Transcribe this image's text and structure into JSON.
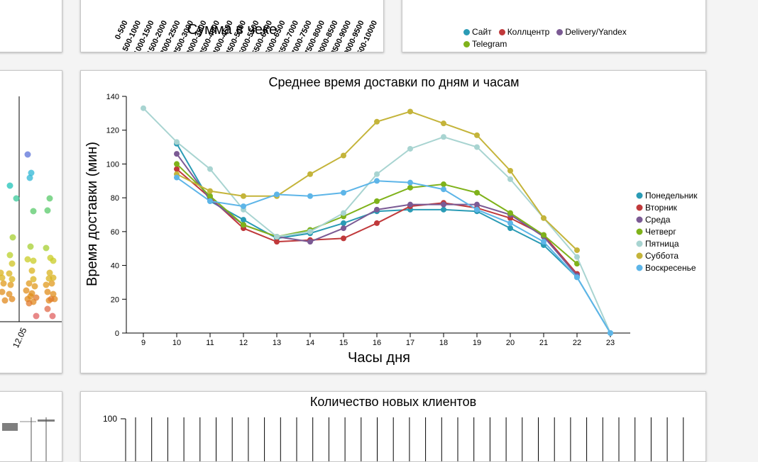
{
  "top_mid": {
    "xlabel": "Сумма в чеке",
    "tick_labels": [
      "0-500",
      "500-1000",
      "1000-1500",
      "1500-2000",
      "2000-2500",
      "2500-3000",
      "3000-3500",
      "3500-4000",
      "4000-4500",
      "4500-5000",
      "5000-5500",
      "5500-6000",
      "6000-6500",
      "6500-7000",
      "7000-7500",
      "7500-8000",
      "8000-8500",
      "8500-9000",
      "9000-9500",
      "9500-10000"
    ]
  },
  "top_right": {
    "legend": [
      {
        "label": "Сайт",
        "color": "#2a9bb5"
      },
      {
        "label": "Коллцентр",
        "color": "#c0393b"
      },
      {
        "label": "Delivery/Yandex",
        "color": "#7b5a94"
      },
      {
        "label": "Telegram",
        "color": "#7fb21a"
      }
    ]
  },
  "mid_left": {
    "tick_label": "12.05"
  },
  "bottom": {
    "title": "Количество новых клиентов",
    "ytick": "100"
  },
  "chart_data": {
    "type": "line",
    "title": "Среднее время доставки по дням и часам",
    "xlabel": "Часы дня",
    "ylabel": "Время доставки (мин)",
    "x": [
      9,
      10,
      11,
      12,
      13,
      14,
      15,
      16,
      17,
      18,
      19,
      20,
      21,
      22,
      23
    ],
    "yticks": [
      0,
      20,
      40,
      60,
      80,
      100,
      120,
      140
    ],
    "ylim": [
      0,
      140
    ],
    "legend_position": "right",
    "series": [
      {
        "name": "Понедельник",
        "color": "#2a9bb5",
        "values": [
          null,
          112,
          78,
          67,
          56,
          59,
          65,
          72,
          73,
          73,
          72,
          62,
          52,
          33,
          0
        ]
      },
      {
        "name": "Вторник",
        "color": "#c0393b",
        "values": [
          null,
          97,
          80,
          62,
          54,
          55,
          56,
          65,
          75,
          77,
          74,
          68,
          58,
          35,
          null
        ]
      },
      {
        "name": "Среда",
        "color": "#7b5a94",
        "values": [
          null,
          106,
          79,
          64,
          57,
          54,
          62,
          73,
          76,
          76,
          76,
          70,
          57,
          34,
          null
        ]
      },
      {
        "name": "Четверг",
        "color": "#7fb21a",
        "values": [
          null,
          100,
          81,
          64,
          57,
          61,
          69,
          78,
          86,
          88,
          83,
          71,
          58,
          41,
          null
        ]
      },
      {
        "name": "Пятница",
        "color": "#a8d4d1",
        "values": [
          133,
          113,
          97,
          73,
          57,
          60,
          71,
          94,
          109,
          116,
          110,
          91,
          68,
          45,
          0
        ]
      },
      {
        "name": "Суббота",
        "color": "#c4b43a",
        "values": [
          null,
          94,
          84,
          81,
          81,
          94,
          105,
          125,
          131,
          124,
          117,
          96,
          68,
          49,
          null
        ]
      },
      {
        "name": "Воскресенье",
        "color": "#5db5e8",
        "values": [
          null,
          92,
          78,
          75,
          82,
          81,
          83,
          90,
          89,
          85,
          73,
          65,
          54,
          33,
          0
        ]
      }
    ]
  }
}
